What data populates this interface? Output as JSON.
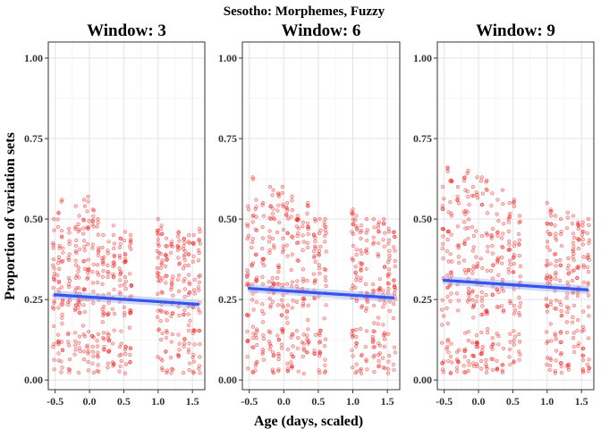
{
  "chart_data": {
    "type": "scatter",
    "title": "Sesotho: Morphemes, Fuzzy",
    "xlabel": "Age (days, scaled)",
    "ylabel": "Proportion of variation sets",
    "xlim": [
      -0.6,
      1.68
    ],
    "ylim": [
      -0.03,
      1.05
    ],
    "xticks": [
      "-0.5",
      "0.0",
      "0.5",
      "1.0",
      "1.5"
    ],
    "yticks": [
      "0.00",
      "0.25",
      "0.50",
      "0.75",
      "1.00"
    ],
    "grid": true,
    "point_color": "#ee0000",
    "line_color": "#3355ee",
    "sessions_x": [
      -0.52,
      -0.45,
      -0.4,
      -0.3,
      -0.2,
      -0.15,
      -0.08,
      -0.02,
      0.05,
      0.12,
      0.2,
      0.28,
      0.35,
      0.45,
      0.52,
      0.6,
      1.0,
      1.05,
      1.12,
      1.2,
      1.3,
      1.38,
      1.45,
      1.52,
      1.6
    ],
    "panels": [
      {
        "title": "Window: 3",
        "trend": {
          "x": [
            -0.52,
            1.6
          ],
          "y": [
            0.265,
            0.235
          ]
        },
        "series_max": [
          0.5,
          0.52,
          0.56,
          0.47,
          0.54,
          0.51,
          0.56,
          0.57,
          0.53,
          0.5,
          0.45,
          0.43,
          0.48,
          0.44,
          0.46,
          0.45,
          0.5,
          0.48,
          0.44,
          0.43,
          0.46,
          0.44,
          0.45,
          0.45,
          0.47
        ]
      },
      {
        "title": "Window: 6",
        "trend": {
          "x": [
            -0.52,
            1.6
          ],
          "y": [
            0.285,
            0.255
          ]
        },
        "series_max": [
          0.54,
          0.63,
          0.56,
          0.55,
          0.6,
          0.59,
          0.58,
          0.6,
          0.55,
          0.57,
          0.51,
          0.49,
          0.55,
          0.5,
          0.5,
          0.5,
          0.53,
          0.51,
          0.48,
          0.5,
          0.5,
          0.49,
          0.5,
          0.47,
          0.46
        ]
      },
      {
        "title": "Window: 9",
        "trend": {
          "x": [
            -0.52,
            1.6
          ],
          "y": [
            0.31,
            0.28
          ]
        },
        "series_max": [
          0.6,
          0.66,
          0.62,
          0.6,
          0.63,
          0.65,
          0.6,
          0.63,
          0.63,
          0.62,
          0.58,
          0.56,
          0.59,
          0.55,
          0.56,
          0.51,
          0.55,
          0.53,
          0.51,
          0.5,
          0.52,
          0.51,
          0.49,
          0.49,
          0.5
        ]
      }
    ]
  }
}
